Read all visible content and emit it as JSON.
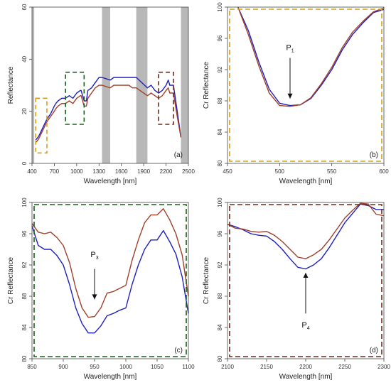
{
  "chart_data": [
    {
      "type": "line",
      "panel_label": "(a)",
      "xlabel": "Wavelength [nm]",
      "ylabel": "Reflectance",
      "xlim": [
        400,
        2500
      ],
      "ylim": [
        0,
        60
      ],
      "xticks": [
        400,
        700,
        1000,
        1300,
        1600,
        1900,
        2200,
        2500
      ],
      "yticks": [
        0,
        20,
        40,
        60
      ],
      "grid": false,
      "shaded_bands": [
        [
          400,
          430
        ],
        [
          1340,
          1450
        ],
        [
          1800,
          1950
        ],
        [
          2400,
          2500
        ]
      ],
      "highlight_boxes": [
        {
          "x0": 450,
          "x1": 600,
          "y0": 4,
          "y1": 25,
          "color": "#d4a017"
        },
        {
          "x0": 850,
          "x1": 1100,
          "y0": 15,
          "y1": 35,
          "color": "#1a5e1a"
        },
        {
          "x0": 2100,
          "x1": 2300,
          "y0": 15,
          "y1": 35,
          "color": "#6b2a1a"
        }
      ],
      "series": [
        {
          "color": "#1f1fbf",
          "x": [
            450,
            480,
            500,
            550,
            600,
            650,
            700,
            720,
            750,
            800,
            850,
            900,
            950,
            1000,
            1050,
            1060,
            1100,
            1130,
            1150,
            1200,
            1250,
            1300,
            1340,
            1450,
            1500,
            1600,
            1700,
            1750,
            1800,
            1950,
            2000,
            2050,
            2100,
            2150,
            2200,
            2230,
            2250,
            2300,
            2350,
            2400
          ],
          "y": [
            9,
            10,
            11,
            14,
            17,
            19,
            22,
            23,
            24,
            25,
            25,
            26,
            25,
            27,
            28,
            28,
            24,
            24,
            28,
            29,
            31,
            33,
            33,
            32,
            33,
            33,
            33,
            33,
            33,
            29,
            30,
            28,
            27,
            28,
            30,
            32,
            30,
            30,
            20,
            10
          ]
        },
        {
          "color": "#a0402a",
          "x": [
            450,
            480,
            500,
            550,
            600,
            650,
            700,
            720,
            750,
            800,
            850,
            900,
            950,
            1000,
            1050,
            1060,
            1100,
            1130,
            1150,
            1200,
            1250,
            1300,
            1340,
            1450,
            1500,
            1600,
            1700,
            1750,
            1800,
            1950,
            2000,
            2050,
            2100,
            2150,
            2200,
            2230,
            2250,
            2300,
            2350,
            2400
          ],
          "y": [
            8,
            9,
            10,
            13,
            16,
            18,
            20,
            21,
            22,
            23,
            23,
            24,
            23,
            25,
            26,
            26,
            22,
            22,
            25,
            27,
            29,
            30,
            30,
            29,
            30,
            30,
            30,
            29,
            29,
            26,
            27,
            26,
            25,
            26,
            28,
            29,
            27,
            27,
            18,
            10
          ]
        }
      ]
    },
    {
      "type": "line",
      "panel_label": "(b)",
      "xlabel": "Wavelength [nm]",
      "ylabel": "Cr Reflectance",
      "xlim": [
        450,
        600
      ],
      "ylim": [
        80,
        100
      ],
      "xticks": [
        450,
        500,
        550,
        600
      ],
      "yticks": [
        80,
        84,
        88,
        92,
        96,
        100
      ],
      "grid": false,
      "frame_color": "#d4a017",
      "annotation": {
        "label": "P",
        "sub": "1",
        "x": 510,
        "y_text": 94.5,
        "y_arrow_start": 93.5,
        "y_arrow_end": 88.3
      },
      "series": [
        {
          "color": "#1f1fbf",
          "x": [
            460,
            470,
            480,
            490,
            500,
            510,
            520,
            530,
            540,
            550,
            560,
            570,
            580,
            590,
            600
          ],
          "y": [
            100,
            97,
            93,
            89.5,
            87.7,
            87.4,
            87.5,
            88.3,
            90,
            92,
            94.5,
            96.5,
            98,
            99.3,
            99.7
          ]
        },
        {
          "color": "#a0402a",
          "x": [
            460,
            470,
            480,
            490,
            500,
            510,
            520,
            530,
            540,
            550,
            560,
            570,
            580,
            590,
            600
          ],
          "y": [
            100,
            96.5,
            92.5,
            89,
            87.4,
            87.3,
            87.5,
            88.4,
            90.2,
            92.3,
            94.8,
            96.8,
            98.2,
            99.4,
            99.9
          ]
        }
      ]
    },
    {
      "type": "line",
      "panel_label": "(c)",
      "xlabel": "Wavelength [nm]",
      "ylabel": "Cr Reflectance",
      "xlim": [
        850,
        1100
      ],
      "ylim": [
        80,
        100
      ],
      "xticks": [
        850,
        900,
        950,
        1000,
        1050,
        1100
      ],
      "yticks": [
        80,
        84,
        88,
        92,
        96,
        100
      ],
      "grid": false,
      "frame_color": "#1a5e1a",
      "annotation": {
        "label": "P",
        "sub": "3",
        "x": 950,
        "y_text": 93,
        "y_arrow_start": 91.5,
        "y_arrow_end": 87.6
      },
      "series": [
        {
          "color": "#1f1fbf",
          "x": [
            850,
            860,
            870,
            880,
            890,
            900,
            910,
            920,
            930,
            940,
            950,
            960,
            970,
            980,
            990,
            1000,
            1010,
            1020,
            1030,
            1040,
            1050,
            1060,
            1070,
            1080,
            1090,
            1100
          ],
          "y": [
            97,
            94.5,
            94,
            94,
            93.2,
            92,
            89.5,
            86.5,
            84.5,
            83.3,
            83.3,
            84.2,
            85.5,
            85.8,
            86.2,
            86.5,
            89.5,
            92,
            94,
            95.2,
            95.2,
            96.4,
            95,
            93.4,
            90.5,
            85.8
          ]
        },
        {
          "color": "#a0402a",
          "x": [
            850,
            860,
            870,
            880,
            890,
            900,
            910,
            920,
            930,
            940,
            950,
            960,
            970,
            980,
            990,
            1000,
            1010,
            1020,
            1030,
            1040,
            1050,
            1060,
            1070,
            1080,
            1090,
            1100
          ],
          "y": [
            97.3,
            96.2,
            96,
            96.2,
            95.5,
            94.5,
            92.3,
            89,
            86.5,
            85.3,
            85.4,
            86.5,
            88.4,
            88.6,
            89,
            89.4,
            92.6,
            95.2,
            97.4,
            98.4,
            98.4,
            99.2,
            97.8,
            96,
            93.3,
            88
          ]
        }
      ]
    },
    {
      "type": "line",
      "panel_label": "(d)",
      "xlabel": "Wavelength [nm]",
      "ylabel": "Cr Reflectance",
      "xlim": [
        2100,
        2300
      ],
      "ylim": [
        80,
        100
      ],
      "xticks": [
        2100,
        2150,
        2200,
        2250,
        2300
      ],
      "yticks": [
        80,
        84,
        88,
        92,
        96,
        100
      ],
      "grid": false,
      "frame_color": "#6b2a1a",
      "annotation": {
        "label": "P",
        "sub": "4",
        "x": 2200,
        "y_text": 84,
        "y_arrow_start": 85.8,
        "y_arrow_end": 91
      },
      "series": [
        {
          "color": "#1f1fbf",
          "x": [
            2100,
            2110,
            2120,
            2130,
            2140,
            2150,
            2160,
            2170,
            2180,
            2190,
            2200,
            2210,
            2220,
            2230,
            2240,
            2250,
            2260,
            2270,
            2280,
            2290,
            2300
          ],
          "y": [
            97.2,
            96.9,
            96.5,
            96,
            95.8,
            95.7,
            95,
            94,
            92.8,
            91.7,
            91.5,
            92,
            92.8,
            94.2,
            95.8,
            97.4,
            98.6,
            99.8,
            99.6,
            99.1,
            99.1
          ]
        },
        {
          "color": "#a0402a",
          "x": [
            2100,
            2110,
            2120,
            2130,
            2140,
            2150,
            2160,
            2170,
            2180,
            2190,
            2200,
            2210,
            2220,
            2230,
            2240,
            2250,
            2260,
            2270,
            2280,
            2290,
            2300
          ],
          "y": [
            97.2,
            96.7,
            96.6,
            96.3,
            96.2,
            96.3,
            95.8,
            95,
            94,
            93,
            92.8,
            93.3,
            94,
            95.2,
            96.6,
            98,
            99,
            99.9,
            99.8,
            98.5,
            98.3
          ]
        }
      ]
    }
  ]
}
